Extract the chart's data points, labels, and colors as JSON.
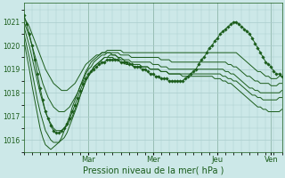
{
  "background_color": "#cce8e8",
  "grid_color": "#aacccc",
  "line_color": "#1a5c1a",
  "xlabel": "Pression niveau de la mer( hPa )",
  "ylim": [
    1015.5,
    1021.8
  ],
  "yticks": [
    1016,
    1017,
    1018,
    1019,
    1020,
    1021
  ],
  "xtick_labels": [
    "Mar",
    "Mer",
    "Jeu",
    "Ven"
  ],
  "xtick_positions": [
    24,
    48,
    72,
    92
  ],
  "total_points": 97,
  "series": [
    {
      "style": "line",
      "data": [
        1021.2,
        1021.0,
        1020.8,
        1020.5,
        1020.2,
        1019.9,
        1019.6,
        1019.3,
        1019.0,
        1018.8,
        1018.6,
        1018.4,
        1018.3,
        1018.2,
        1018.1,
        1018.1,
        1018.1,
        1018.2,
        1018.3,
        1018.4,
        1018.6,
        1018.8,
        1019.0,
        1019.2,
        1019.3,
        1019.4,
        1019.5,
        1019.6,
        1019.6,
        1019.7,
        1019.7,
        1019.8,
        1019.8,
        1019.8,
        1019.8,
        1019.8,
        1019.8,
        1019.7,
        1019.7,
        1019.7,
        1019.7,
        1019.7,
        1019.7,
        1019.7,
        1019.7,
        1019.7,
        1019.7,
        1019.7,
        1019.7,
        1019.7,
        1019.7,
        1019.7,
        1019.7,
        1019.7,
        1019.7,
        1019.7,
        1019.7,
        1019.7,
        1019.7,
        1019.7,
        1019.7,
        1019.7,
        1019.7,
        1019.7,
        1019.7,
        1019.7,
        1019.7,
        1019.7,
        1019.7,
        1019.7,
        1019.7,
        1019.7,
        1019.7,
        1019.7,
        1019.7,
        1019.7,
        1019.7,
        1019.7,
        1019.7,
        1019.7,
        1019.6,
        1019.5,
        1019.4,
        1019.3,
        1019.2,
        1019.1,
        1019.0,
        1018.9,
        1018.9,
        1018.8,
        1018.7,
        1018.7,
        1018.6,
        1018.6,
        1018.6,
        1018.7,
        1018.7
      ]
    },
    {
      "style": "line",
      "data": [
        1021.0,
        1020.7,
        1020.4,
        1020.0,
        1019.6,
        1019.2,
        1018.8,
        1018.4,
        1018.1,
        1017.8,
        1017.6,
        1017.4,
        1017.3,
        1017.2,
        1017.2,
        1017.2,
        1017.3,
        1017.4,
        1017.6,
        1017.8,
        1018.0,
        1018.3,
        1018.5,
        1018.8,
        1019.0,
        1019.1,
        1019.3,
        1019.4,
        1019.5,
        1019.6,
        1019.6,
        1019.7,
        1019.7,
        1019.7,
        1019.7,
        1019.7,
        1019.6,
        1019.6,
        1019.6,
        1019.6,
        1019.5,
        1019.5,
        1019.5,
        1019.5,
        1019.5,
        1019.5,
        1019.5,
        1019.5,
        1019.5,
        1019.5,
        1019.5,
        1019.4,
        1019.4,
        1019.4,
        1019.4,
        1019.3,
        1019.3,
        1019.3,
        1019.3,
        1019.3,
        1019.3,
        1019.3,
        1019.3,
        1019.3,
        1019.3,
        1019.3,
        1019.3,
        1019.3,
        1019.3,
        1019.3,
        1019.3,
        1019.3,
        1019.3,
        1019.3,
        1019.3,
        1019.3,
        1019.2,
        1019.2,
        1019.1,
        1019.1,
        1019.0,
        1018.9,
        1018.8,
        1018.7,
        1018.7,
        1018.6,
        1018.5,
        1018.5,
        1018.4,
        1018.4,
        1018.4,
        1018.4,
        1018.3,
        1018.3,
        1018.3,
        1018.4,
        1018.4
      ]
    },
    {
      "style": "line",
      "data": [
        1020.8,
        1020.4,
        1020.0,
        1019.5,
        1019.0,
        1018.5,
        1018.0,
        1017.6,
        1017.2,
        1016.9,
        1016.7,
        1016.5,
        1016.4,
        1016.4,
        1016.4,
        1016.5,
        1016.6,
        1016.8,
        1017.0,
        1017.3,
        1017.6,
        1017.9,
        1018.2,
        1018.5,
        1018.7,
        1018.9,
        1019.1,
        1019.2,
        1019.3,
        1019.4,
        1019.5,
        1019.5,
        1019.6,
        1019.6,
        1019.6,
        1019.5,
        1019.5,
        1019.4,
        1019.4,
        1019.4,
        1019.3,
        1019.3,
        1019.3,
        1019.3,
        1019.3,
        1019.3,
        1019.3,
        1019.3,
        1019.2,
        1019.2,
        1019.2,
        1019.1,
        1019.1,
        1019.1,
        1019.0,
        1019.0,
        1019.0,
        1019.0,
        1019.0,
        1019.0,
        1019.0,
        1019.0,
        1019.0,
        1019.0,
        1019.0,
        1019.0,
        1019.0,
        1019.0,
        1019.0,
        1019.0,
        1019.0,
        1019.0,
        1019.0,
        1019.0,
        1019.0,
        1018.9,
        1018.9,
        1018.8,
        1018.8,
        1018.7,
        1018.6,
        1018.5,
        1018.4,
        1018.3,
        1018.2,
        1018.2,
        1018.1,
        1018.1,
        1018.0,
        1018.0,
        1018.0,
        1018.0,
        1018.0,
        1018.0,
        1018.0,
        1018.0,
        1018.1
      ]
    },
    {
      "style": "line",
      "data": [
        1020.5,
        1020.0,
        1019.5,
        1018.9,
        1018.3,
        1017.7,
        1017.2,
        1016.8,
        1016.4,
        1016.2,
        1016.0,
        1015.9,
        1015.9,
        1015.9,
        1016.0,
        1016.1,
        1016.3,
        1016.6,
        1016.9,
        1017.2,
        1017.5,
        1017.9,
        1018.2,
        1018.5,
        1018.7,
        1018.9,
        1019.1,
        1019.2,
        1019.3,
        1019.4,
        1019.5,
        1019.5,
        1019.5,
        1019.5,
        1019.4,
        1019.4,
        1019.3,
        1019.3,
        1019.2,
        1019.2,
        1019.2,
        1019.1,
        1019.1,
        1019.1,
        1019.1,
        1019.1,
        1019.1,
        1019.0,
        1019.0,
        1019.0,
        1019.0,
        1018.9,
        1018.9,
        1018.9,
        1018.8,
        1018.8,
        1018.8,
        1018.8,
        1018.8,
        1018.8,
        1018.8,
        1018.8,
        1018.8,
        1018.8,
        1018.8,
        1018.8,
        1018.8,
        1018.8,
        1018.8,
        1018.8,
        1018.8,
        1018.8,
        1018.8,
        1018.8,
        1018.7,
        1018.7,
        1018.6,
        1018.6,
        1018.5,
        1018.5,
        1018.4,
        1018.3,
        1018.2,
        1018.1,
        1018.0,
        1017.9,
        1017.9,
        1017.8,
        1017.8,
        1017.7,
        1017.7,
        1017.7,
        1017.7,
        1017.7,
        1017.7,
        1017.8,
        1017.8
      ]
    },
    {
      "style": "line",
      "data": [
        1020.2,
        1019.6,
        1019.0,
        1018.3,
        1017.7,
        1017.1,
        1016.5,
        1016.1,
        1015.8,
        1015.7,
        1015.6,
        1015.7,
        1015.8,
        1015.9,
        1016.1,
        1016.4,
        1016.7,
        1017.0,
        1017.4,
        1017.7,
        1018.0,
        1018.3,
        1018.6,
        1018.9,
        1019.1,
        1019.3,
        1019.4,
        1019.5,
        1019.6,
        1019.7,
        1019.7,
        1019.7,
        1019.7,
        1019.6,
        1019.6,
        1019.5,
        1019.4,
        1019.4,
        1019.3,
        1019.3,
        1019.2,
        1019.2,
        1019.2,
        1019.2,
        1019.1,
        1019.1,
        1019.1,
        1019.0,
        1019.0,
        1019.0,
        1019.0,
        1018.9,
        1018.9,
        1018.9,
        1018.8,
        1018.8,
        1018.8,
        1018.8,
        1018.8,
        1018.7,
        1018.7,
        1018.7,
        1018.7,
        1018.7,
        1018.7,
        1018.7,
        1018.7,
        1018.7,
        1018.7,
        1018.7,
        1018.7,
        1018.6,
        1018.6,
        1018.6,
        1018.5,
        1018.5,
        1018.4,
        1018.4,
        1018.3,
        1018.2,
        1018.1,
        1018.0,
        1017.9,
        1017.8,
        1017.7,
        1017.6,
        1017.5,
        1017.4,
        1017.4,
        1017.3,
        1017.3,
        1017.2,
        1017.2,
        1017.2,
        1017.2,
        1017.2,
        1017.3
      ]
    },
    {
      "style": "markers",
      "data": [
        1021.3,
        1020.9,
        1020.5,
        1020.0,
        1019.4,
        1018.8,
        1018.2,
        1017.7,
        1017.2,
        1016.9,
        1016.6,
        1016.4,
        1016.3,
        1016.3,
        1016.4,
        1016.5,
        1016.7,
        1016.9,
        1017.2,
        1017.5,
        1017.8,
        1018.1,
        1018.4,
        1018.6,
        1018.8,
        1018.9,
        1019.0,
        1019.1,
        1019.2,
        1019.3,
        1019.3,
        1019.4,
        1019.4,
        1019.4,
        1019.4,
        1019.4,
        1019.3,
        1019.3,
        1019.3,
        1019.2,
        1019.2,
        1019.1,
        1019.1,
        1019.1,
        1019.0,
        1019.0,
        1018.9,
        1018.8,
        1018.8,
        1018.7,
        1018.7,
        1018.6,
        1018.6,
        1018.6,
        1018.5,
        1018.5,
        1018.5,
        1018.5,
        1018.5,
        1018.5,
        1018.6,
        1018.7,
        1018.8,
        1018.9,
        1019.0,
        1019.2,
        1019.4,
        1019.5,
        1019.7,
        1019.9,
        1020.0,
        1020.2,
        1020.3,
        1020.5,
        1020.6,
        1020.7,
        1020.8,
        1020.9,
        1021.0,
        1021.0,
        1020.9,
        1020.8,
        1020.7,
        1020.6,
        1020.5,
        1020.3,
        1020.1,
        1019.9,
        1019.7,
        1019.5,
        1019.3,
        1019.2,
        1019.1,
        1018.9,
        1018.8,
        1018.8,
        1018.7
      ]
    }
  ]
}
